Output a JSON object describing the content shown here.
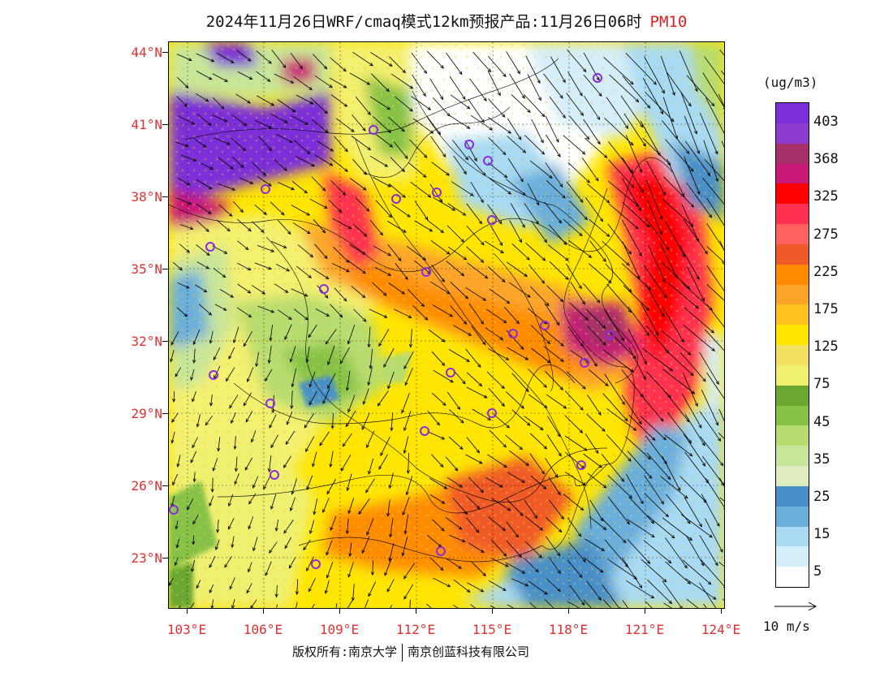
{
  "title": {
    "main": "2024年11月26日WRF/cmaq模式12km预报产品:11月26日06时",
    "pollutant": "PM10"
  },
  "map": {
    "lat_labels": [
      "44°N",
      "41°N",
      "38°N",
      "35°N",
      "32°N",
      "29°N",
      "26°N",
      "23°N"
    ],
    "lon_labels": [
      "103°E",
      "106°E",
      "109°E",
      "112°E",
      "115°E",
      "118°E",
      "121°E",
      "124°E"
    ]
  },
  "colorbar": {
    "unit": "(ug/m3)",
    "labels": [
      "403",
      "368",
      "325",
      "275",
      "225",
      "175",
      "125",
      "75",
      "45",
      "35",
      "25",
      "15",
      "5"
    ],
    "colors": [
      "#7b2fd8",
      "#8e3ccf",
      "#a63068",
      "#c81878",
      "#ff0000",
      "#ff3050",
      "#ff6060",
      "#f05a28",
      "#ff8c00",
      "#fca42a",
      "#ffc020",
      "#ffe600",
      "#f4e060",
      "#f0f070",
      "#6aa832",
      "#86c246",
      "#b8dc70",
      "#c8e69a",
      "#deecc0",
      "#4a90c8",
      "#6aaedc",
      "#a8daf4",
      "#d4eefa",
      "#ffffff"
    ]
  },
  "vector_key": {
    "label": "10 m/s"
  },
  "footer": {
    "copyright_left": "版权所有:南京大学",
    "copyright_right": "南京创蓝科技有限公司"
  }
}
